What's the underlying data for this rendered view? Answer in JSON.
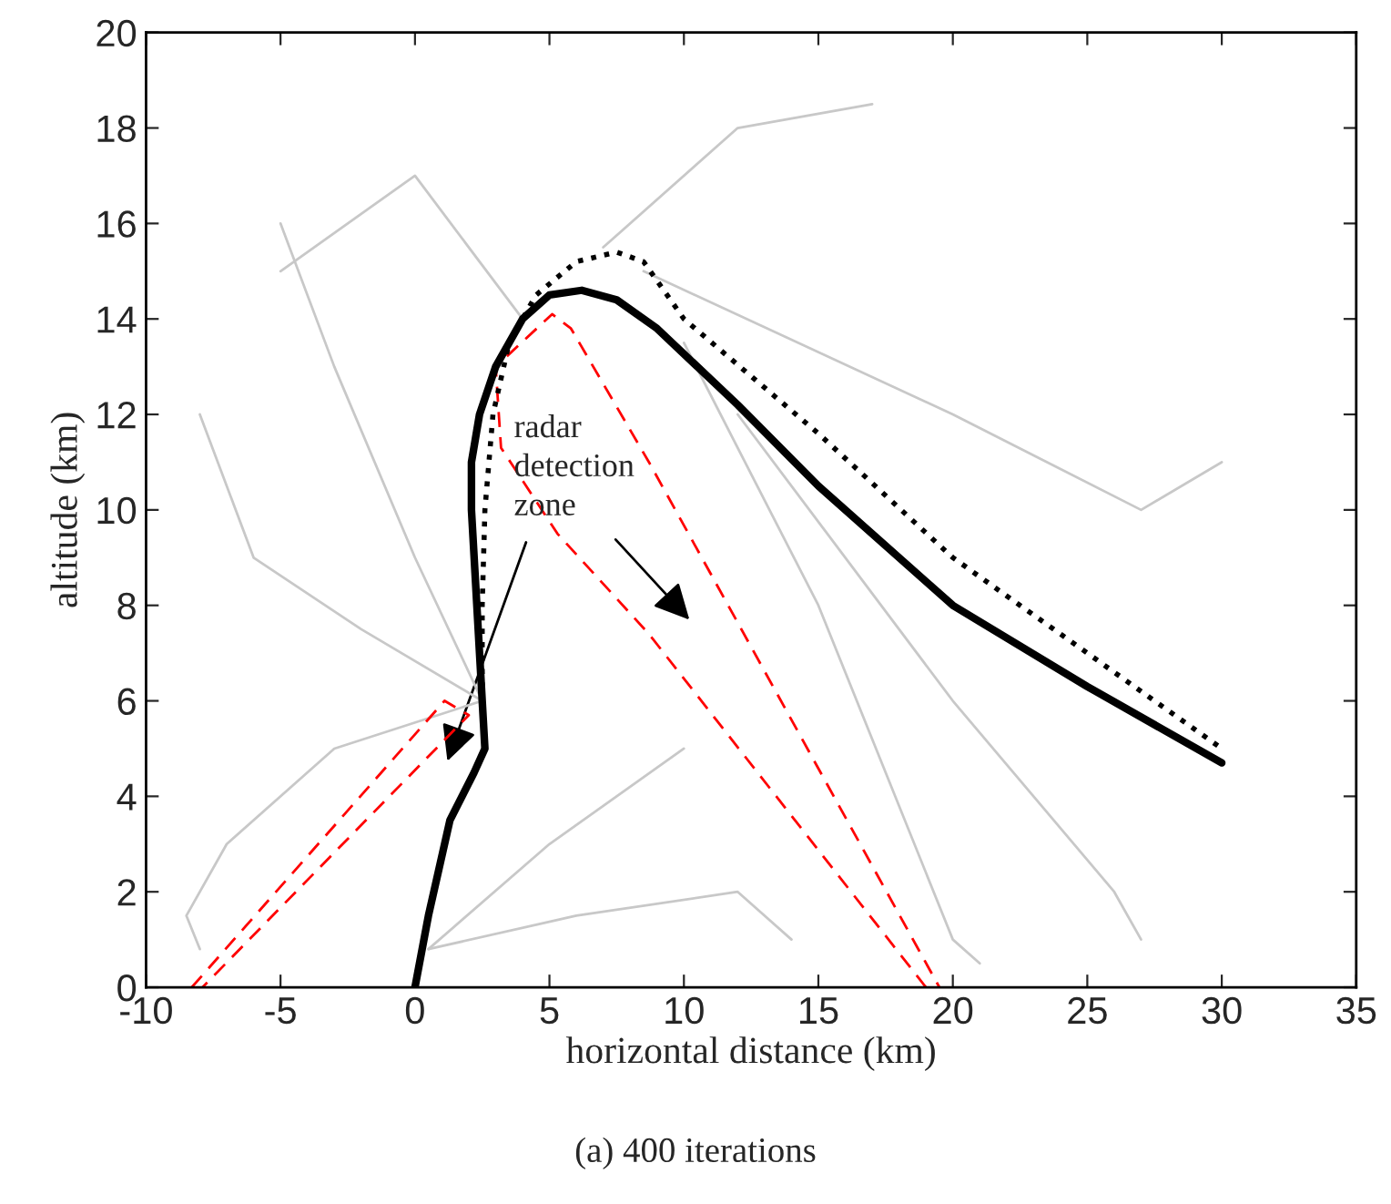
{
  "chart_data": {
    "type": "line",
    "xlabel": "horizontal distance (km)",
    "ylabel": "altitude (km)",
    "xlim": [
      -10,
      35
    ],
    "ylim": [
      0,
      20
    ],
    "xticks": [
      -10,
      -5,
      0,
      5,
      10,
      15,
      20,
      25,
      30,
      35
    ],
    "yticks": [
      0,
      2,
      4,
      6,
      8,
      10,
      12,
      14,
      16,
      18,
      20
    ],
    "grid": false,
    "legend": false,
    "marker": "none",
    "series": [
      {
        "color": "#c8c8c8",
        "line_style": "solid",
        "x": [
          2.5,
          -2,
          -6,
          -8
        ],
        "values": [
          6,
          7.5,
          9,
          12
        ]
      },
      {
        "color": "#c8c8c8",
        "line_style": "solid",
        "x": [
          2.5,
          -3,
          -7,
          -8.5,
          -8
        ],
        "values": [
          6,
          5,
          3,
          1.5,
          0.8
        ]
      },
      {
        "color": "#c8c8c8",
        "line_style": "solid",
        "x": [
          2.5,
          0,
          -3,
          -5
        ],
        "values": [
          6,
          9,
          13,
          16
        ]
      },
      {
        "color": "#c8c8c8",
        "line_style": "solid",
        "x": [
          0.5,
          5,
          10
        ],
        "values": [
          0.8,
          3,
          5
        ]
      },
      {
        "color": "#c8c8c8",
        "line_style": "solid",
        "x": [
          0.5,
          6,
          12,
          14
        ],
        "values": [
          0.8,
          1.5,
          2,
          1
        ]
      },
      {
        "color": "#c8c8c8",
        "line_style": "solid",
        "x": [
          8.5,
          20,
          27,
          30
        ],
        "values": [
          15,
          12,
          10,
          11
        ]
      },
      {
        "color": "#c8c8c8",
        "line_style": "solid",
        "x": [
          10,
          15,
          20,
          21
        ],
        "values": [
          13.5,
          8,
          1,
          0.5
        ]
      },
      {
        "color": "#c8c8c8",
        "line_style": "solid",
        "x": [
          12,
          20,
          26,
          27
        ],
        "values": [
          12,
          6,
          2,
          1
        ]
      },
      {
        "color": "#c8c8c8",
        "line_style": "solid",
        "x": [
          4,
          0,
          -5
        ],
        "values": [
          14,
          17,
          15
        ]
      },
      {
        "color": "#c8c8c8",
        "line_style": "solid",
        "x": [
          7,
          12,
          17
        ],
        "values": [
          15.5,
          18,
          18.5
        ]
      },
      {
        "color": "#ff0000",
        "line_style": "dashed",
        "x": [
          19,
          8.7,
          5.3,
          3.2,
          3,
          5.1,
          5.8,
          8.7,
          19.5
        ],
        "values": [
          0,
          7.4,
          9.5,
          11.3,
          13,
          14.1,
          13.8,
          11,
          0
        ]
      },
      {
        "color": "#ff0000",
        "line_style": "dashed",
        "x": [
          -8.3,
          1.1,
          2,
          -7.9
        ],
        "values": [
          0,
          6,
          5.7,
          0
        ]
      },
      {
        "color": "#000000",
        "line_style": "dotted",
        "x": [
          2.5,
          2.5,
          2.6,
          2.9,
          3.5,
          4.5,
          6,
          7.5,
          8.5,
          10,
          15,
          20,
          25,
          30
        ],
        "values": [
          6,
          8,
          10,
          12,
          13.5,
          14.5,
          15.2,
          15.4,
          15.2,
          14,
          11.6,
          9,
          7,
          5
        ]
      },
      {
        "color": "#000000",
        "line_style": "solid",
        "x": [
          0,
          0.5,
          1.3,
          2.2,
          2.6,
          2.5,
          2.3,
          2.1,
          2.1,
          2.4,
          3,
          4,
          5,
          6.2,
          7.5,
          9,
          12,
          15,
          20,
          25,
          30
        ],
        "values": [
          0,
          1.5,
          3.5,
          4.5,
          5,
          6,
          8,
          10,
          11,
          12,
          13,
          14,
          14.5,
          14.6,
          14.4,
          13.8,
          12.2,
          10.5,
          8,
          6.3,
          4.7
        ]
      }
    ],
    "annotations": [
      "radar\ndetection\nzone",
      "(a) 400 iterations"
    ]
  }
}
